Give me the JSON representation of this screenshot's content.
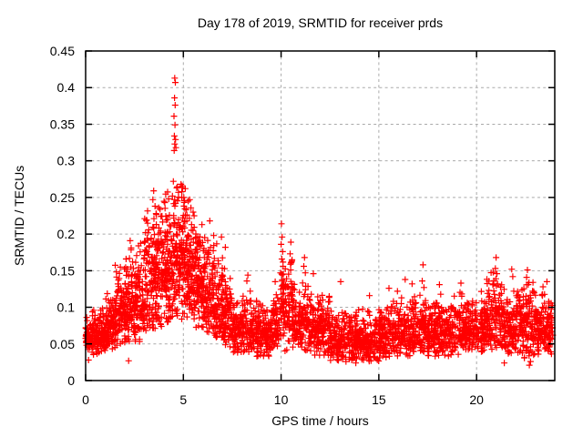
{
  "chart_data": {
    "type": "scatter",
    "title": "Day 178 of 2019, SRMTID for receiver prds",
    "xlabel": "GPS time / hours",
    "ylabel": "SRMTID / TECUs",
    "legend": "none",
    "grid": "dashed-major-both-axes",
    "x_axis": {
      "min": 0,
      "max": 24,
      "ticks": [
        0,
        5,
        10,
        15,
        20
      ],
      "tick_labels": [
        "0",
        "5",
        "10",
        "15",
        "20"
      ]
    },
    "y_axis": {
      "min": 0,
      "max": 0.45,
      "ticks": [
        0,
        0.05,
        0.1,
        0.15,
        0.2,
        0.25,
        0.3,
        0.35,
        0.4,
        0.45
      ],
      "tick_labels": [
        "0",
        "0.05",
        "0.1",
        "0.15",
        "0.2",
        "0.25",
        "0.3",
        "0.35",
        "0.4",
        "0.45"
      ]
    },
    "marker": {
      "shape": "plus",
      "color": "#ff0000",
      "size": 7
    },
    "series": [
      {
        "name": "SRMTID",
        "density_bins_t0_t1_n_lo_hi": [
          [
            0.0,
            0.3,
            55,
            0.038,
            0.095
          ],
          [
            0.3,
            1.0,
            130,
            0.035,
            0.105
          ],
          [
            1.0,
            1.5,
            95,
            0.04,
            0.125
          ],
          [
            1.5,
            2.0,
            95,
            0.045,
            0.165
          ],
          [
            2.0,
            2.5,
            100,
            0.05,
            0.185
          ],
          [
            2.5,
            3.0,
            100,
            0.05,
            0.2
          ],
          [
            3.0,
            3.5,
            100,
            0.06,
            0.235
          ],
          [
            3.5,
            4.0,
            110,
            0.07,
            0.255
          ],
          [
            4.0,
            4.5,
            110,
            0.075,
            0.265
          ],
          [
            4.5,
            5.0,
            115,
            0.08,
            0.295
          ],
          [
            5.0,
            5.5,
            110,
            0.08,
            0.265
          ],
          [
            5.5,
            6.0,
            100,
            0.07,
            0.23
          ],
          [
            6.0,
            6.5,
            100,
            0.06,
            0.215
          ],
          [
            6.5,
            7.0,
            100,
            0.055,
            0.195
          ],
          [
            7.0,
            7.5,
            90,
            0.045,
            0.16
          ],
          [
            7.5,
            8.5,
            150,
            0.035,
            0.125
          ],
          [
            8.5,
            9.5,
            150,
            0.032,
            0.115
          ],
          [
            9.5,
            10.0,
            75,
            0.04,
            0.13
          ],
          [
            10.0,
            10.2,
            40,
            0.05,
            0.185
          ],
          [
            10.2,
            10.7,
            80,
            0.04,
            0.175
          ],
          [
            10.7,
            11.0,
            48,
            0.04,
            0.125
          ],
          [
            11.0,
            11.4,
            60,
            0.04,
            0.15
          ],
          [
            11.4,
            12.5,
            165,
            0.032,
            0.125
          ],
          [
            12.5,
            14.0,
            225,
            0.026,
            0.1
          ],
          [
            14.0,
            15.0,
            150,
            0.026,
            0.098
          ],
          [
            15.0,
            16.0,
            150,
            0.03,
            0.115
          ],
          [
            16.0,
            17.0,
            150,
            0.032,
            0.125
          ],
          [
            17.0,
            17.4,
            58,
            0.035,
            0.13
          ],
          [
            17.4,
            19.0,
            235,
            0.032,
            0.118
          ],
          [
            19.0,
            20.5,
            225,
            0.035,
            0.125
          ],
          [
            20.5,
            21.3,
            120,
            0.04,
            0.155
          ],
          [
            21.3,
            22.4,
            165,
            0.035,
            0.135
          ],
          [
            22.4,
            23.0,
            95,
            0.03,
            0.145
          ],
          [
            23.0,
            23.92,
            140,
            0.035,
            0.13
          ]
        ],
        "outlier_points_t_v": [
          [
            0.15,
            0.028
          ],
          [
            2.2,
            0.027
          ],
          [
            2.28,
            0.191
          ],
          [
            2.33,
            0.181
          ],
          [
            3.02,
            0.221
          ],
          [
            3.48,
            0.259
          ],
          [
            3.44,
            0.247
          ],
          [
            3.55,
            0.238
          ],
          [
            3.6,
            0.228
          ],
          [
            4.05,
            0.243
          ],
          [
            4.25,
            0.248
          ],
          [
            4.56,
            0.413
          ],
          [
            4.59,
            0.407
          ],
          [
            4.55,
            0.386
          ],
          [
            4.58,
            0.376
          ],
          [
            4.52,
            0.361
          ],
          [
            4.57,
            0.349
          ],
          [
            4.54,
            0.334
          ],
          [
            4.6,
            0.329
          ],
          [
            4.56,
            0.323
          ],
          [
            4.62,
            0.318
          ],
          [
            4.53,
            0.314
          ],
          [
            4.49,
            0.272
          ],
          [
            4.66,
            0.263
          ],
          [
            4.44,
            0.252
          ],
          [
            4.75,
            0.257
          ],
          [
            4.88,
            0.268
          ],
          [
            4.92,
            0.258
          ],
          [
            5.1,
            0.262
          ],
          [
            5.32,
            0.247
          ],
          [
            5.55,
            0.225
          ],
          [
            5.95,
            0.213
          ],
          [
            6.35,
            0.218
          ],
          [
            6.55,
            0.198
          ],
          [
            6.95,
            0.196
          ],
          [
            7.15,
            0.182
          ],
          [
            8.3,
            0.144
          ],
          [
            8.25,
            0.136
          ],
          [
            9.7,
            0.135
          ],
          [
            10.02,
            0.214
          ],
          [
            10.05,
            0.196
          ],
          [
            10.0,
            0.186
          ],
          [
            10.08,
            0.176
          ],
          [
            10.04,
            0.166
          ],
          [
            10.1,
            0.156
          ],
          [
            9.97,
            0.147
          ],
          [
            10.5,
            0.189
          ],
          [
            10.46,
            0.173
          ],
          [
            10.55,
            0.163
          ],
          [
            10.49,
            0.151
          ],
          [
            11.2,
            0.168
          ],
          [
            11.16,
            0.156
          ],
          [
            11.24,
            0.147
          ],
          [
            11.65,
            0.146
          ],
          [
            12.9,
            0.028
          ],
          [
            13.05,
            0.135
          ],
          [
            13.32,
            0.026
          ],
          [
            13.82,
            0.024
          ],
          [
            14.52,
            0.116
          ],
          [
            14.6,
            0.027
          ],
          [
            15.52,
            0.126
          ],
          [
            15.95,
            0.122
          ],
          [
            16.35,
            0.138
          ],
          [
            16.7,
            0.132
          ],
          [
            17.26,
            0.158
          ],
          [
            17.22,
            0.136
          ],
          [
            17.31,
            0.127
          ],
          [
            18.1,
            0.131
          ],
          [
            19.2,
            0.133
          ],
          [
            20.96,
            0.153
          ],
          [
            21.0,
            0.168
          ],
          [
            21.04,
            0.146
          ],
          [
            20.99,
            0.139
          ],
          [
            21.08,
            0.132
          ],
          [
            21.42,
            0.024
          ],
          [
            21.8,
            0.152
          ],
          [
            21.85,
            0.142
          ],
          [
            22.56,
            0.141
          ],
          [
            22.6,
            0.151
          ],
          [
            22.64,
            0.131
          ],
          [
            22.7,
            0.021
          ],
          [
            22.76,
            0.026
          ],
          [
            23.4,
            0.128
          ],
          [
            23.6,
            0.135
          ]
        ]
      }
    ]
  },
  "colors": {
    "marker": "#ff0000",
    "grid": "#aaaaaa",
    "frame": "#000000",
    "background": "#ffffff",
    "text": "#000000"
  }
}
